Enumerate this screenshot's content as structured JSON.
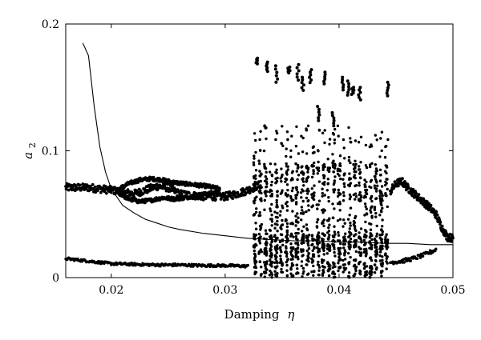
{
  "chart_data": {
    "type": "scatter",
    "title": "",
    "xlabel": "Damping",
    "xlabel_symbol": "η",
    "ylabel": "a",
    "ylabel_sub": "2",
    "xlim": [
      0.016,
      0.05
    ],
    "ylim": [
      0,
      0.2
    ],
    "x_ticks": [
      0.02,
      0.03,
      0.04,
      0.05
    ],
    "x_tick_labels": [
      "0.02",
      "0.03",
      "0.04",
      "0.05"
    ],
    "y_ticks": [
      0,
      0.1,
      0.2
    ],
    "y_tick_labels": [
      "0",
      "0.1",
      "0.2"
    ],
    "grid": false,
    "legend": "none",
    "series": [
      {
        "kind": "line",
        "x": [
          0.0175,
          0.018,
          0.0185,
          0.019,
          0.0195,
          0.02,
          0.021,
          0.022,
          0.023,
          0.024,
          0.025,
          0.026,
          0.028,
          0.03,
          0.032,
          0.034,
          0.036,
          0.038,
          0.04,
          0.042,
          0.044,
          0.046,
          0.048,
          0.05
        ],
        "y": [
          0.185,
          0.175,
          0.135,
          0.103,
          0.083,
          0.07,
          0.057,
          0.051,
          0.046,
          0.043,
          0.04,
          0.038,
          0.035,
          0.033,
          0.031,
          0.03,
          0.029,
          0.029,
          0.028,
          0.028,
          0.027,
          0.027,
          0.026,
          0.026
        ]
      },
      {
        "kind": "upper-branch",
        "x": [
          0.016,
          0.018,
          0.02,
          0.022,
          0.024,
          0.025,
          0.026,
          0.028,
          0.03,
          0.031,
          0.032,
          0.033
        ],
        "y": [
          0.071,
          0.071,
          0.069,
          0.066,
          0.072,
          0.071,
          0.066,
          0.064,
          0.064,
          0.066,
          0.069,
          0.073
        ]
      },
      {
        "kind": "loop-upper",
        "x": [
          0.0205,
          0.0215,
          0.0225,
          0.0235,
          0.0245,
          0.0255,
          0.0265,
          0.0275,
          0.0285,
          0.0295
        ],
        "y": [
          0.069,
          0.074,
          0.077,
          0.078,
          0.077,
          0.075,
          0.074,
          0.073,
          0.072,
          0.07
        ]
      },
      {
        "kind": "loop-lower",
        "x": [
          0.0205,
          0.0215,
          0.0225,
          0.0235,
          0.0245,
          0.0255,
          0.0265,
          0.0275,
          0.0285,
          0.0295
        ],
        "y": [
          0.068,
          0.062,
          0.06,
          0.061,
          0.063,
          0.062,
          0.063,
          0.065,
          0.066,
          0.068
        ]
      },
      {
        "kind": "lower-branch",
        "x": [
          0.016,
          0.018,
          0.02,
          0.022,
          0.024,
          0.026,
          0.028,
          0.03,
          0.032
        ],
        "y": [
          0.015,
          0.013,
          0.011,
          0.0105,
          0.01,
          0.01,
          0.0095,
          0.0095,
          0.009
        ]
      },
      {
        "kind": "post-chaos",
        "x": [
          0.0445,
          0.045,
          0.0455,
          0.046,
          0.047,
          0.048,
          0.0485,
          0.049,
          0.0495,
          0.05
        ],
        "y": [
          0.068,
          0.074,
          0.076,
          0.071,
          0.063,
          0.055,
          0.05,
          0.04,
          0.032,
          0.031
        ]
      },
      {
        "kind": "post-chaos-lower",
        "x": [
          0.0445,
          0.0455,
          0.0465,
          0.0475,
          0.0485
        ],
        "y": [
          0.012,
          0.013,
          0.015,
          0.018,
          0.022
        ]
      },
      {
        "kind": "bursts",
        "x": [
          0.0328,
          0.0337,
          0.0345,
          0.0356,
          0.0364,
          0.0368,
          0.0375,
          0.0382,
          0.0387,
          0.0395,
          0.0403,
          0.0408,
          0.0412,
          0.0418,
          0.0443
        ],
        "y": [
          0.173,
          0.17,
          0.167,
          0.166,
          0.168,
          0.158,
          0.164,
          0.135,
          0.162,
          0.13,
          0.158,
          0.155,
          0.15,
          0.15,
          0.154
        ]
      },
      {
        "kind": "chaos",
        "x_range": [
          0.0325,
          0.0445
        ],
        "y_range": [
          0,
          0.12
        ]
      }
    ]
  }
}
